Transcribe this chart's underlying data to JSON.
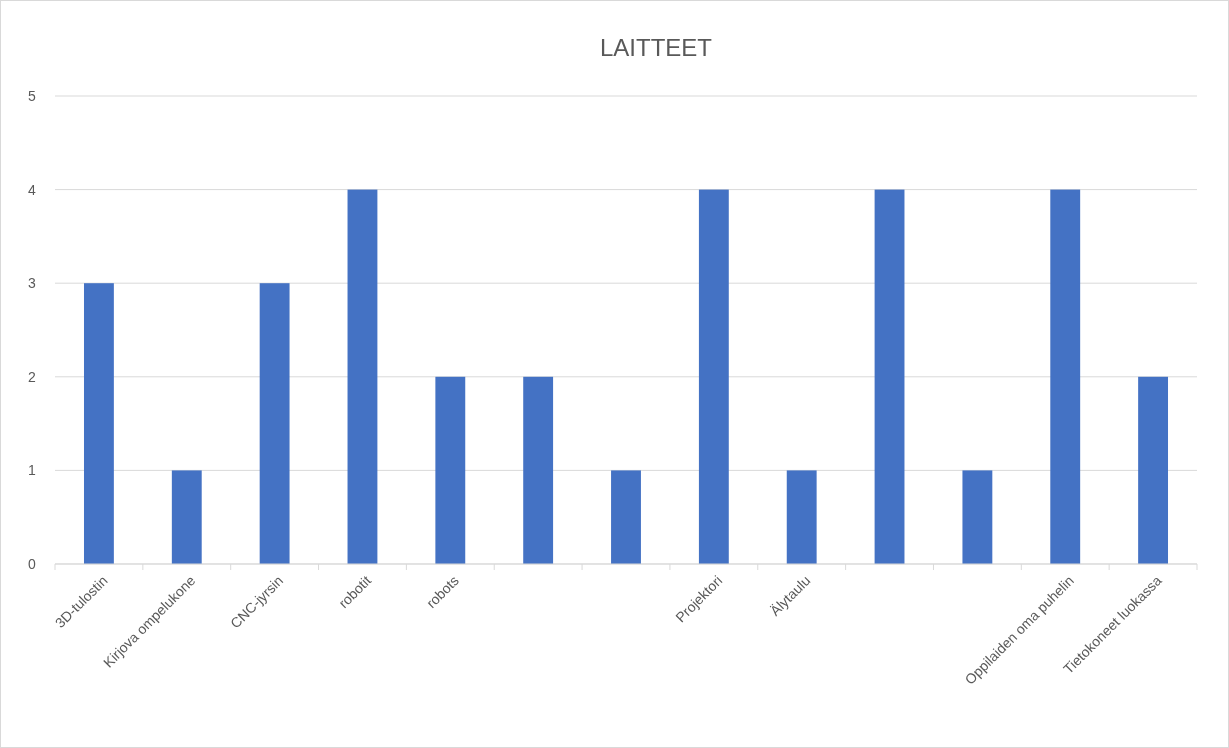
{
  "chart_data": {
    "type": "bar",
    "title": "LAITTEET",
    "categories": [
      "3D-tulostin",
      "Kirjova ompelukone",
      "CNC-jyrsin",
      "robotit",
      "robots",
      null,
      null,
      "Projektori",
      "Älytaulu",
      null,
      null,
      "Oppilaiden oma puhelin",
      "Tietokoneet luokassa"
    ],
    "values": [
      3,
      1,
      3,
      4,
      2,
      2,
      1,
      4,
      1,
      4,
      1,
      4,
      2
    ],
    "color": "#4472c4",
    "ylim": [
      0,
      5
    ],
    "yticks": [
      0,
      1,
      2,
      3,
      4,
      5
    ],
    "grid": "y"
  }
}
